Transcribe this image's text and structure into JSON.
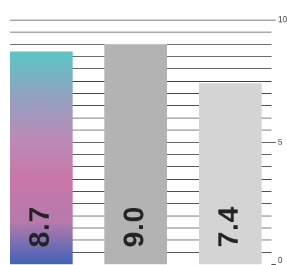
{
  "chart_data": {
    "type": "bar",
    "title": "",
    "xlabel": "",
    "ylabel": "",
    "categories": [
      "",
      "",
      ""
    ],
    "values": [
      8.7,
      9.0,
      7.4
    ],
    "value_labels": [
      "8.7",
      "9.0",
      "7.4"
    ],
    "ylim": [
      0,
      10
    ],
    "y_ticks": [
      0,
      5,
      10
    ],
    "y_tick_labels": [
      "0",
      "5",
      "10"
    ],
    "y_axis_position": "right",
    "minor_grid_step": 0.5,
    "grid": true,
    "bar_colors": [
      "gradient",
      "#b3b3b3",
      "#d4d4d4"
    ],
    "gradient_stops": [
      "#5cc6c4",
      "#8fa3c2",
      "#b98bb6",
      "#c977a8",
      "#b67aac",
      "#3f63b8"
    ]
  }
}
